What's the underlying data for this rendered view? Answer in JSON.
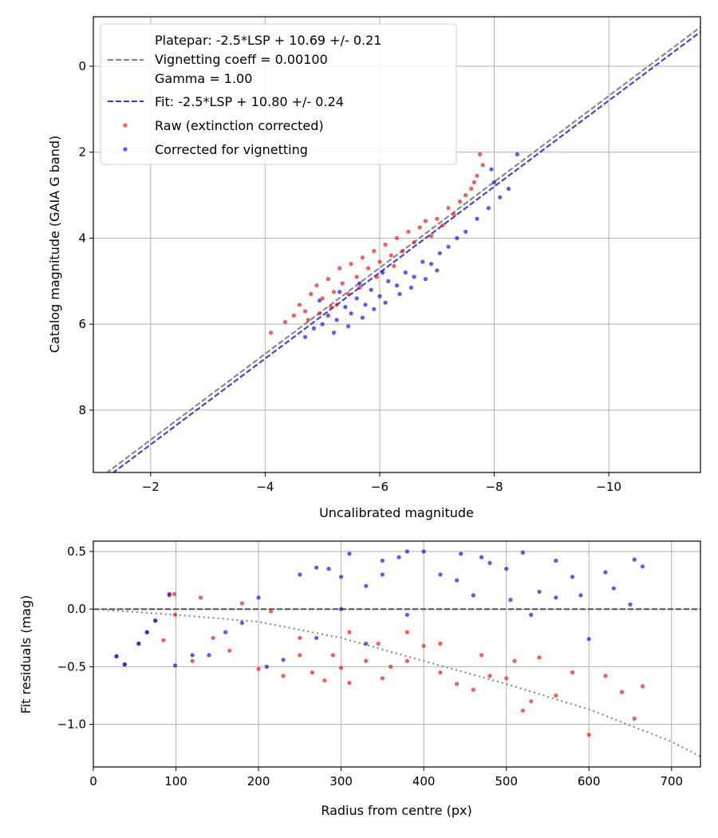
{
  "chart_data": [
    {
      "type": "scatter",
      "xlabel": "Uncalibrated magnitude",
      "ylabel": "Catalog magnitude (GAIA G band)",
      "xlim": [
        -1.0,
        -11.6
      ],
      "ylim": [
        9.45,
        -1.15
      ],
      "x_ticks": [
        -2,
        -4,
        -6,
        -8,
        -10
      ],
      "x_tick_labels": [
        "−2",
        "−4",
        "−6",
        "−8",
        "−10"
      ],
      "y_ticks": [
        0,
        2,
        4,
        6,
        8
      ],
      "y_tick_labels": [
        "0",
        "2",
        "4",
        "6",
        "8"
      ],
      "grid": true,
      "legend_position": "top-left",
      "legend": [
        {
          "kind": "spacer",
          "label": "Platepar: -2.5*LSP + 10.69 +/- 0.21"
        },
        {
          "kind": "line",
          "color": "#808080",
          "label": "Vignetting coeff = 0.00100"
        },
        {
          "kind": "spacer",
          "label": "Gamma = 1.00"
        },
        {
          "kind": "line",
          "color": "#3333ee",
          "label": "Fit: -2.5*LSP + 10.80 +/- 0.24"
        },
        {
          "kind": "dot",
          "color": "#ff0000",
          "label": "Raw (extinction corrected)"
        },
        {
          "kind": "dot",
          "color": "#0000ff",
          "label": "Corrected for vignetting"
        }
      ],
      "lines": [
        {
          "name": "Platepar",
          "slope": 1.0,
          "intercept": 10.69,
          "color": "#808080",
          "style": "dashed"
        },
        {
          "name": "Fit",
          "slope": 1.0,
          "intercept": 10.8,
          "color": "#3333ee",
          "style": "dashed"
        }
      ],
      "series": [
        {
          "name": "Raw (extinction corrected)",
          "color": "#ff0000",
          "points": [
            [
              -4.1,
              6.2
            ],
            [
              -4.35,
              5.95
            ],
            [
              -4.5,
              5.8
            ],
            [
              -4.6,
              5.55
            ],
            [
              -4.7,
              5.7
            ],
            [
              -4.8,
              5.3
            ],
            [
              -4.9,
              5.1
            ],
            [
              -5.0,
              5.4
            ],
            [
              -5.1,
              4.95
            ],
            [
              -5.2,
              5.25
            ],
            [
              -5.3,
              4.7
            ],
            [
              -5.35,
              5.05
            ],
            [
              -5.5,
              4.6
            ],
            [
              -5.6,
              4.9
            ],
            [
              -5.7,
              4.45
            ],
            [
              -5.8,
              4.7
            ],
            [
              -5.9,
              4.3
            ],
            [
              -6.0,
              4.55
            ],
            [
              -6.1,
              4.15
            ],
            [
              -6.2,
              4.4
            ],
            [
              -6.3,
              4.0
            ],
            [
              -6.4,
              4.3
            ],
            [
              -6.5,
              3.85
            ],
            [
              -6.6,
              4.1
            ],
            [
              -6.7,
              3.75
            ],
            [
              -6.8,
              3.6
            ],
            [
              -6.9,
              3.95
            ],
            [
              -7.0,
              3.55
            ],
            [
              -7.1,
              3.7
            ],
            [
              -7.2,
              3.3
            ],
            [
              -7.3,
              3.45
            ],
            [
              -7.4,
              3.15
            ],
            [
              -7.5,
              3.0
            ],
            [
              -7.6,
              2.85
            ],
            [
              -7.7,
              2.55
            ],
            [
              -7.8,
              2.3
            ],
            [
              -7.75,
              2.05
            ],
            [
              -7.65,
              2.7
            ],
            [
              -5.25,
              5.55
            ],
            [
              -5.45,
              5.3
            ],
            [
              -5.65,
              5.15
            ],
            [
              -5.95,
              4.9
            ],
            [
              -6.25,
              4.65
            ],
            [
              -4.75,
              5.9
            ],
            [
              -4.95,
              5.75
            ],
            [
              -5.15,
              5.6
            ]
          ]
        },
        {
          "name": "Corrected for vignetting",
          "color": "#0000ff",
          "points": [
            [
              -4.7,
              6.3
            ],
            [
              -4.85,
              6.1
            ],
            [
              -5.0,
              6.0
            ],
            [
              -5.1,
              5.8
            ],
            [
              -5.25,
              5.9
            ],
            [
              -5.4,
              5.6
            ],
            [
              -5.5,
              5.75
            ],
            [
              -5.6,
              5.4
            ],
            [
              -5.75,
              5.55
            ],
            [
              -5.85,
              5.2
            ],
            [
              -6.0,
              5.35
            ],
            [
              -6.15,
              5.0
            ],
            [
              -6.3,
              5.1
            ],
            [
              -6.45,
              4.8
            ],
            [
              -6.6,
              4.9
            ],
            [
              -6.75,
              4.55
            ],
            [
              -6.9,
              4.6
            ],
            [
              -7.05,
              4.35
            ],
            [
              -7.2,
              4.2
            ],
            [
              -7.35,
              4.0
            ],
            [
              -7.5,
              3.85
            ],
            [
              -7.7,
              3.55
            ],
            [
              -7.9,
              3.3
            ],
            [
              -8.1,
              3.05
            ],
            [
              -8.25,
              2.85
            ],
            [
              -8.4,
              2.05
            ],
            [
              -7.95,
              2.4
            ],
            [
              -8.0,
              2.7
            ],
            [
              -5.2,
              6.2
            ],
            [
              -5.45,
              6.05
            ],
            [
              -5.7,
              5.85
            ],
            [
              -5.9,
              5.65
            ],
            [
              -6.1,
              5.5
            ],
            [
              -6.35,
              5.3
            ],
            [
              -6.55,
              5.15
            ],
            [
              -6.8,
              4.95
            ],
            [
              -7.0,
              4.75
            ],
            [
              -4.95,
              5.45
            ],
            [
              -5.3,
              5.25
            ],
            [
              -5.65,
              5.05
            ],
            [
              -6.05,
              4.8
            ]
          ]
        }
      ]
    },
    {
      "type": "scatter",
      "xlabel": "Radius from centre (px)",
      "ylabel": "Fit residuals (mag)",
      "xlim": [
        0,
        735
      ],
      "ylim": [
        -1.37,
        0.59
      ],
      "x_ticks": [
        0,
        100,
        200,
        300,
        400,
        500,
        600,
        700
      ],
      "x_tick_labels": [
        "0",
        "100",
        "200",
        "300",
        "400",
        "500",
        "600",
        "700"
      ],
      "y_ticks": [
        0.5,
        0.0,
        -0.5,
        -1.0
      ],
      "y_tick_labels": [
        "0.5",
        "0.0",
        "−0.5",
        "−1.0"
      ],
      "grid": true,
      "lines": [
        {
          "name": "Zero residual",
          "points": [
            [
              0,
              0
            ],
            [
              735,
              0
            ]
          ],
          "color": "#505050",
          "style": "dashed"
        },
        {
          "name": "Vignetting trend",
          "points": [
            [
              0,
              0.0
            ],
            [
              100,
              -0.05
            ],
            [
              200,
              -0.11
            ],
            [
              300,
              -0.25
            ],
            [
              400,
              -0.45
            ],
            [
              500,
              -0.65
            ],
            [
              600,
              -0.87
            ],
            [
              700,
              -1.15
            ],
            [
              735,
              -1.28
            ]
          ],
          "color": "#808080",
          "style": "dotted"
        }
      ],
      "series": [
        {
          "name": "Raw (extinction corrected)",
          "color": "#ff0000",
          "points": [
            [
              28,
              -0.41
            ],
            [
              38,
              -0.48
            ],
            [
              55,
              -0.3
            ],
            [
              65,
              -0.2
            ],
            [
              75,
              -0.1
            ],
            [
              85,
              -0.27
            ],
            [
              92,
              0.12
            ],
            [
              98,
              0.13
            ],
            [
              99,
              -0.05
            ],
            [
              120,
              -0.45
            ],
            [
              130,
              0.1
            ],
            [
              145,
              -0.25
            ],
            [
              165,
              -0.36
            ],
            [
              180,
              0.05
            ],
            [
              200,
              -0.52
            ],
            [
              215,
              -0.02
            ],
            [
              230,
              -0.58
            ],
            [
              250,
              -0.4
            ],
            [
              265,
              -0.55
            ],
            [
              280,
              -0.62
            ],
            [
              300,
              -0.51
            ],
            [
              310,
              -0.64
            ],
            [
              330,
              -0.45
            ],
            [
              345,
              -0.3
            ],
            [
              360,
              -0.5
            ],
            [
              380,
              -0.2
            ],
            [
              400,
              -0.32
            ],
            [
              420,
              -0.55
            ],
            [
              440,
              -0.65
            ],
            [
              460,
              -0.7
            ],
            [
              480,
              -0.58
            ],
            [
              500,
              -0.6
            ],
            [
              520,
              -0.88
            ],
            [
              540,
              -0.42
            ],
            [
              560,
              -0.75
            ],
            [
              580,
              -0.55
            ],
            [
              600,
              -1.09
            ],
            [
              620,
              -0.58
            ],
            [
              640,
              -0.72
            ],
            [
              655,
              -0.95
            ],
            [
              665,
              -0.67
            ],
            [
              510,
              -0.45
            ],
            [
              530,
              -0.8
            ],
            [
              470,
              -0.4
            ],
            [
              350,
              -0.6
            ],
            [
              250,
              -0.25
            ],
            [
              310,
              -0.2
            ],
            [
              420,
              -0.3
            ],
            [
              380,
              -0.45
            ],
            [
              290,
              -0.4
            ]
          ]
        },
        {
          "name": "Corrected for vignetting",
          "color": "#0000ff",
          "points": [
            [
              28,
              -0.41
            ],
            [
              38,
              -0.48
            ],
            [
              55,
              -0.3
            ],
            [
              65,
              -0.2
            ],
            [
              75,
              -0.1
            ],
            [
              92,
              0.13
            ],
            [
              99,
              -0.49
            ],
            [
              120,
              -0.4
            ],
            [
              140,
              -0.4
            ],
            [
              160,
              -0.2
            ],
            [
              180,
              -0.12
            ],
            [
              200,
              0.1
            ],
            [
              210,
              -0.5
            ],
            [
              230,
              -0.44
            ],
            [
              250,
              0.3
            ],
            [
              270,
              0.36
            ],
            [
              285,
              0.35
            ],
            [
              300,
              0.28
            ],
            [
              310,
              0.48
            ],
            [
              330,
              0.2
            ],
            [
              350,
              0.42
            ],
            [
              370,
              0.45
            ],
            [
              380,
              0.5
            ],
            [
              400,
              0.5
            ],
            [
              420,
              0.3
            ],
            [
              440,
              0.25
            ],
            [
              445,
              0.48
            ],
            [
              460,
              0.12
            ],
            [
              480,
              0.4
            ],
            [
              500,
              0.35
            ],
            [
              520,
              0.49
            ],
            [
              540,
              0.15
            ],
            [
              560,
              0.42
            ],
            [
              580,
              0.28
            ],
            [
              600,
              -0.26
            ],
            [
              620,
              0.32
            ],
            [
              630,
              0.18
            ],
            [
              650,
              0.04
            ],
            [
              655,
              0.43
            ],
            [
              665,
              0.37
            ],
            [
              470,
              0.45
            ],
            [
              505,
              0.08
            ],
            [
              530,
              -0.05
            ],
            [
              560,
              0.1
            ],
            [
              590,
              0.12
            ],
            [
              350,
              0.3
            ],
            [
              330,
              -0.3
            ],
            [
              270,
              -0.25
            ],
            [
              300,
              0.0
            ],
            [
              380,
              -0.05
            ]
          ]
        }
      ]
    }
  ]
}
